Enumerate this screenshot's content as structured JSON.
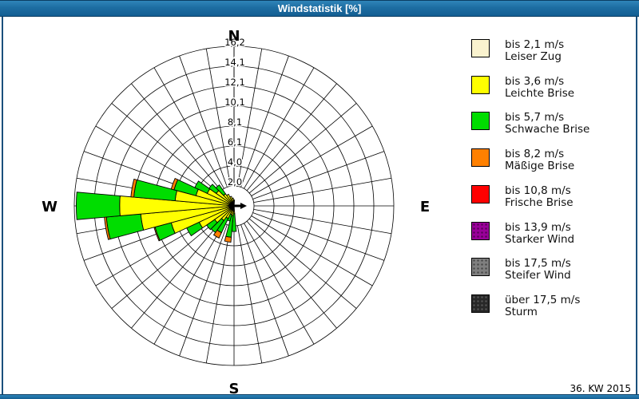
{
  "window": {
    "title": "Windstatistik [%]",
    "footer_note": "36. KW 2015"
  },
  "colors": {
    "titlebar_blue": "#1d6da2",
    "frame_navy": "#1a507c",
    "grid_line": "#000000",
    "background": "#ffffff"
  },
  "chart_data": {
    "type": "wind-rose",
    "title": "Windstatistik [%]",
    "units": "%",
    "sector_width_deg": 10,
    "num_sectors": 36,
    "compass": {
      "n": "N",
      "e": "E",
      "s": "S",
      "w": "W"
    },
    "rings": {
      "max": 16.2,
      "values": [
        2.0,
        4.0,
        6.1,
        8.1,
        10.1,
        12.1,
        14.1,
        16.2
      ],
      "labels": [
        "2,0",
        "4,0",
        "6,1",
        "8,1",
        "10,1",
        "12,1",
        "14,1",
        "16,2"
      ]
    },
    "speed_classes": [
      {
        "label": "bis 2,1 m/s",
        "name": "Leiser Zug",
        "color": "#FAF3CF",
        "pattern": "none"
      },
      {
        "label": "bis 3,6 m/s",
        "name": "Leichte Brise",
        "color": "#FFFF00",
        "pattern": "none"
      },
      {
        "label": "bis 5,7 m/s",
        "name": "Schwache Brise",
        "color": "#00DD00",
        "pattern": "none"
      },
      {
        "label": "bis 8,2 m/s",
        "name": "Mäßige Brise",
        "color": "#FF8000",
        "pattern": "none"
      },
      {
        "label": "bis 10,8 m/s",
        "name": "Frische Brise",
        "color": "#FF0000",
        "pattern": "none"
      },
      {
        "label": "bis 13,9 m/s",
        "name": "Starker Wind",
        "color": "#990099",
        "pattern": "dots-dark"
      },
      {
        "label": "bis 17,5 m/s",
        "name": "Steifer Wind",
        "color": "#7F7F7F",
        "pattern": "dots-dark"
      },
      {
        "label": "über 17,5 m/s",
        "name": "Sturm",
        "color": "#282828",
        "pattern": "dots-light"
      }
    ],
    "sectors": [
      {
        "direction_deg": 0,
        "cumulative_pct": [
          0.2,
          0.6,
          0.6,
          0.6
        ]
      },
      {
        "direction_deg": 180,
        "cumulative_pct": [
          0.2,
          0.8,
          2.6,
          2.6
        ]
      },
      {
        "direction_deg": 190,
        "cumulative_pct": [
          0.3,
          1.0,
          3.2,
          3.7
        ]
      },
      {
        "direction_deg": 200,
        "cumulative_pct": [
          0.2,
          0.9,
          1.6,
          1.6
        ]
      },
      {
        "direction_deg": 210,
        "cumulative_pct": [
          0.2,
          1.4,
          3.0,
          3.6
        ]
      },
      {
        "direction_deg": 220,
        "cumulative_pct": [
          0.2,
          1.8,
          3.3,
          3.3
        ]
      },
      {
        "direction_deg": 230,
        "cumulative_pct": [
          0.3,
          2.4,
          3.4,
          3.4
        ]
      },
      {
        "direction_deg": 240,
        "cumulative_pct": [
          0.4,
          3.9,
          5.3,
          5.3
        ]
      },
      {
        "direction_deg": 250,
        "cumulative_pct": [
          0.5,
          6.6,
          8.3,
          8.4
        ]
      },
      {
        "direction_deg": 260,
        "cumulative_pct": [
          0.5,
          9.5,
          13.0,
          13.2
        ]
      },
      {
        "direction_deg": 270,
        "cumulative_pct": [
          0.5,
          11.6,
          16.0,
          16.0
        ]
      },
      {
        "direction_deg": 280,
        "cumulative_pct": [
          0.5,
          6.0,
          10.2,
          10.5
        ]
      },
      {
        "direction_deg": 290,
        "cumulative_pct": [
          0.4,
          4.0,
          6.3,
          6.6
        ]
      },
      {
        "direction_deg": 300,
        "cumulative_pct": [
          0.3,
          3.0,
          4.4,
          4.4
        ]
      },
      {
        "direction_deg": 310,
        "cumulative_pct": [
          0.3,
          2.2,
          3.1,
          3.1
        ]
      },
      {
        "direction_deg": 320,
        "cumulative_pct": [
          0.2,
          1.5,
          2.6,
          2.6
        ]
      },
      {
        "direction_deg": 330,
        "cumulative_pct": [
          0.2,
          1.3,
          1.3,
          1.3
        ]
      },
      {
        "direction_deg": 340,
        "cumulative_pct": [
          0.2,
          1.0,
          1.0,
          1.0
        ]
      },
      {
        "direction_deg": 350,
        "cumulative_pct": [
          0.2,
          0.8,
          0.8,
          0.8
        ]
      }
    ],
    "center_marker": "wind-direction-arrow-east",
    "legend_position": "right"
  }
}
